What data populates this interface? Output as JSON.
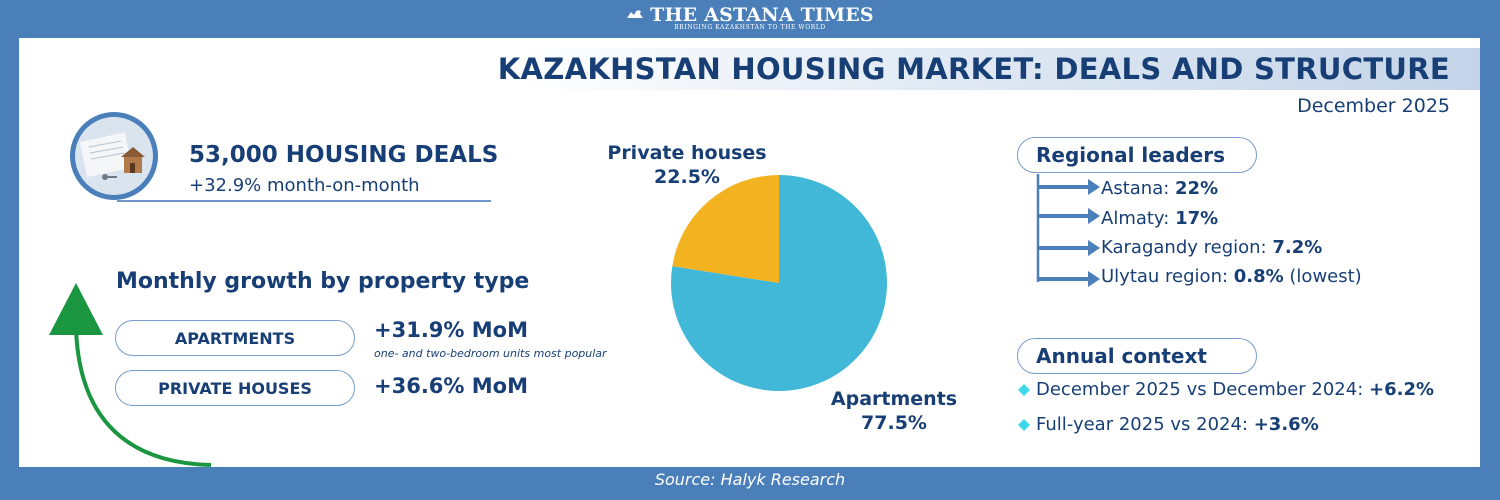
{
  "masthead": {
    "name": "THE ASTANA TIMES",
    "tagline": "BRINGING KAZAKHSTAN TO THE WORLD"
  },
  "header": {
    "title": "KAZAKHSTAN HOUSING MARKET: DEALS AND STRUCTURE",
    "date": "December 2025"
  },
  "deals": {
    "headline": "53,000 HOUSING DEALS",
    "change": "+32.9% month-on-month"
  },
  "growth": {
    "heading": "Monthly growth by property type",
    "items": [
      {
        "label": "APARTMENTS",
        "value": "+31.9% MoM",
        "note": "one- and two-bedroom units most popular"
      },
      {
        "label": "PRIVATE HOUSES",
        "value": "+36.6% MoM",
        "note": ""
      }
    ]
  },
  "regions": {
    "heading": "Regional leaders",
    "items": [
      {
        "name": "Astana: ",
        "value": "22%",
        "suffix": ""
      },
      {
        "name": "Almaty: ",
        "value": "17%",
        "suffix": ""
      },
      {
        "name": "Karagandy region: ",
        "value": "7.2%",
        "suffix": ""
      },
      {
        "name": "Ulytau region: ",
        "value": "0.8%",
        "suffix": " (lowest)"
      }
    ]
  },
  "annual": {
    "heading": "Annual context",
    "items": [
      {
        "text": "December 2025 vs December 2024: ",
        "value": "+6.2%"
      },
      {
        "text": "Full-year 2025 vs 2024: ",
        "value": "+3.6%"
      }
    ]
  },
  "source": "Source: Halyk Research",
  "colors": {
    "background": "#4a7fba",
    "title_text": "#183f75",
    "apartments": "#42b8d8",
    "private_houses": "#f3b320",
    "arrow_green": "#1a9640",
    "accent_diamond": "#3fd8e8"
  },
  "icons": [
    "newspaper-logo-icon",
    "house-photo-icon",
    "growth-arrow-icon",
    "bracket-arrow-icon",
    "diamond-bullet-icon"
  ],
  "chart_data": {
    "type": "pie",
    "categories": [
      "Apartments",
      "Private houses"
    ],
    "values": [
      77.5,
      22.5
    ],
    "value_labels": [
      "77.5%",
      "22.5%"
    ],
    "colors": [
      "#42b8d8",
      "#f3b320"
    ],
    "start_angle_deg": 0,
    "direction": "clockwise"
  }
}
